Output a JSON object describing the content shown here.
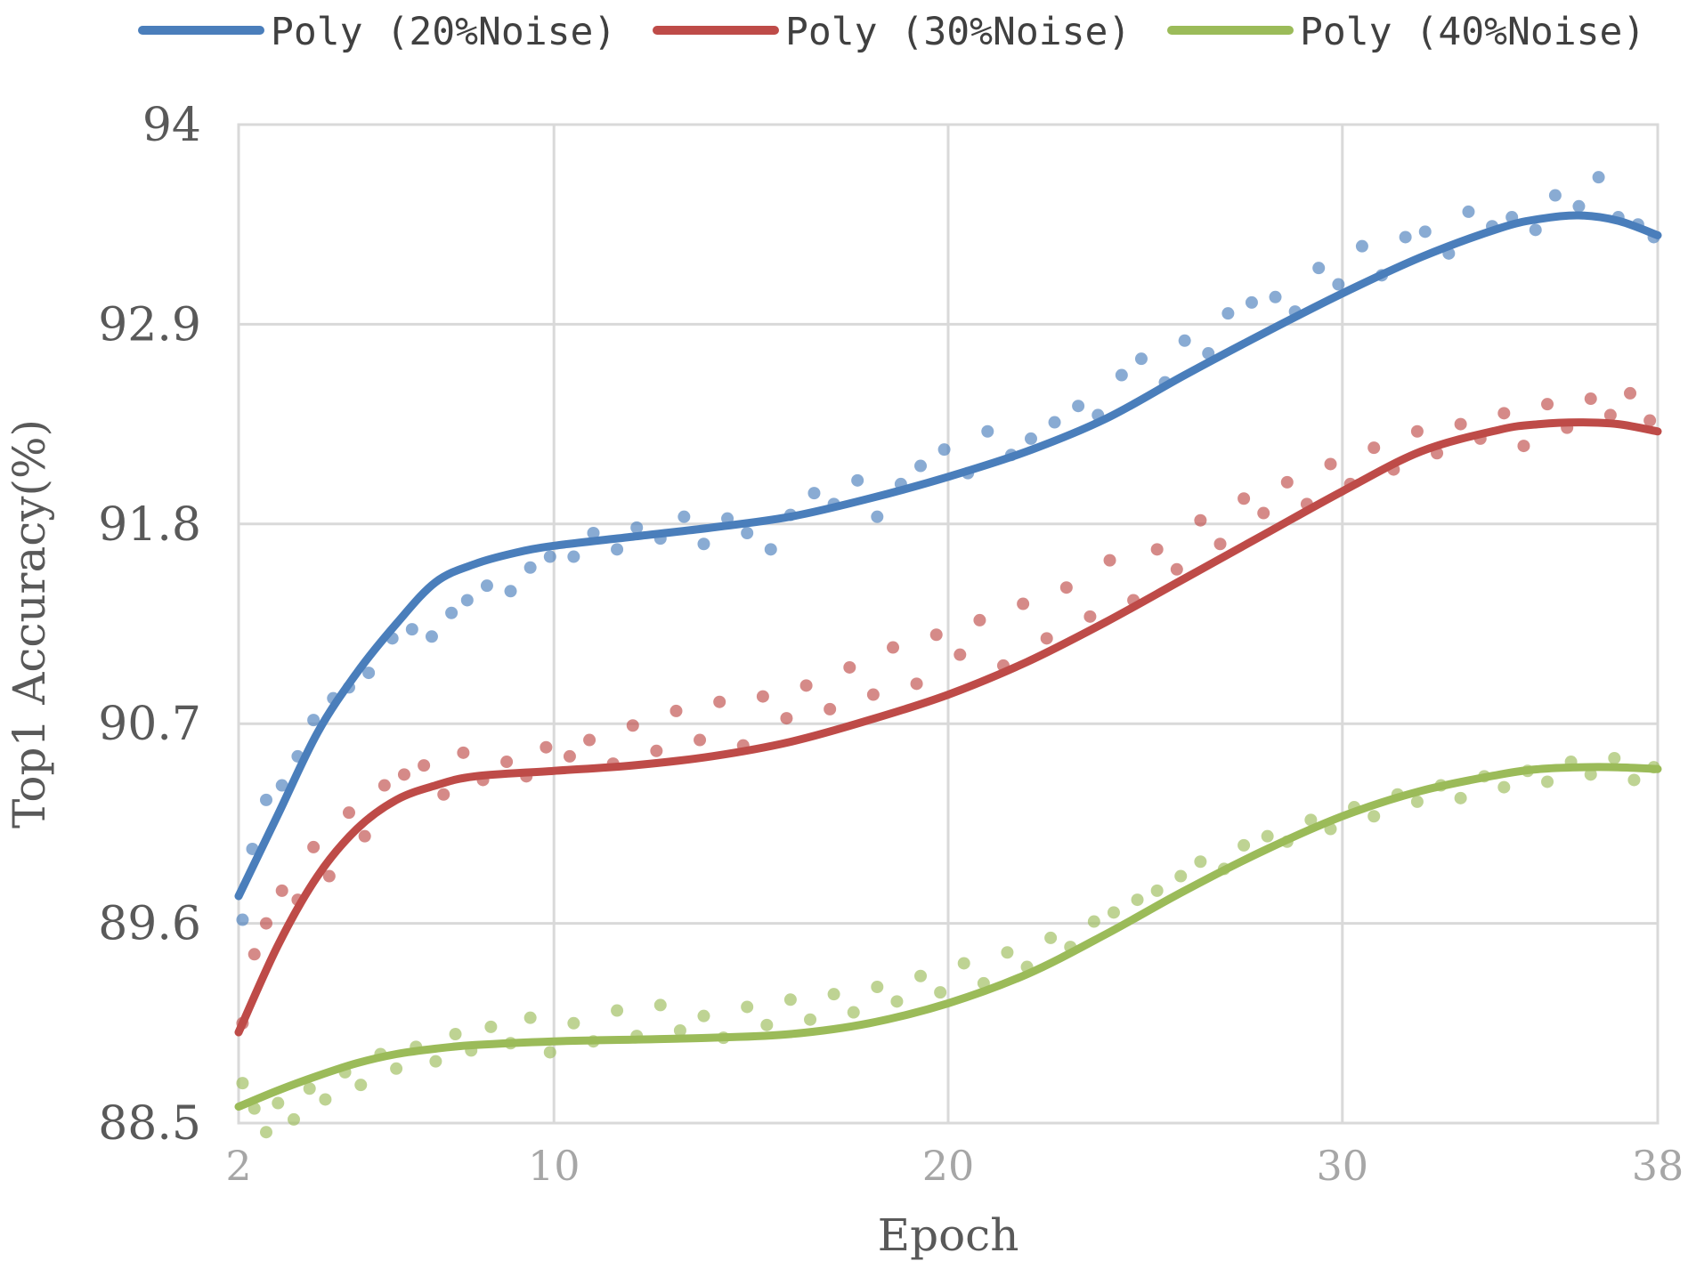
{
  "chart_data": {
    "type": "scatter",
    "title": "",
    "xlabel": "Epoch",
    "ylabel": "Top1 Accuracy(%)",
    "xlim": [
      2,
      38
    ],
    "ylim": [
      88.5,
      94
    ],
    "x_ticks": [
      2,
      10,
      20,
      30,
      38
    ],
    "y_ticks": [
      88.5,
      89.6,
      90.7,
      91.8,
      92.9,
      94
    ],
    "x_tick_labels": [
      "2",
      "10",
      "20",
      "30",
      "38"
    ],
    "y_tick_labels": [
      "88.5",
      "89.6",
      "90.7",
      "91.8",
      "92.9",
      "94"
    ],
    "grid": true,
    "legend_position": "top",
    "series": [
      {
        "name": "Poly (20%Noise)",
        "color": "#4a7ebb",
        "trend": [
          [
            2,
            89.75
          ],
          [
            3,
            90.2
          ],
          [
            4,
            90.65
          ],
          [
            5,
            90.98
          ],
          [
            6,
            91.25
          ],
          [
            7,
            91.48
          ],
          [
            8,
            91.58
          ],
          [
            9,
            91.64
          ],
          [
            10,
            91.68
          ],
          [
            12,
            91.73
          ],
          [
            14,
            91.78
          ],
          [
            16,
            91.84
          ],
          [
            18,
            91.94
          ],
          [
            20,
            92.06
          ],
          [
            22,
            92.2
          ],
          [
            24,
            92.38
          ],
          [
            26,
            92.62
          ],
          [
            28,
            92.85
          ],
          [
            30,
            93.07
          ],
          [
            32,
            93.27
          ],
          [
            34,
            93.43
          ],
          [
            35,
            93.48
          ],
          [
            36,
            93.5
          ],
          [
            37,
            93.47
          ],
          [
            38,
            93.39
          ]
        ],
        "points": [
          [
            2.1,
            89.62
          ],
          [
            2.35,
            90.01
          ],
          [
            2.7,
            90.28
          ],
          [
            3.1,
            90.36
          ],
          [
            3.5,
            90.52
          ],
          [
            3.9,
            90.72
          ],
          [
            4.4,
            90.84
          ],
          [
            4.8,
            90.9
          ],
          [
            5.3,
            90.98
          ],
          [
            5.9,
            91.17
          ],
          [
            6.4,
            91.22
          ],
          [
            6.9,
            91.18
          ],
          [
            7.4,
            91.31
          ],
          [
            7.8,
            91.38
          ],
          [
            8.3,
            91.46
          ],
          [
            8.9,
            91.43
          ],
          [
            9.4,
            91.56
          ],
          [
            9.9,
            91.62
          ],
          [
            10.5,
            91.62
          ],
          [
            11.0,
            91.75
          ],
          [
            11.6,
            91.66
          ],
          [
            12.1,
            91.78
          ],
          [
            12.7,
            91.72
          ],
          [
            13.3,
            91.84
          ],
          [
            13.8,
            91.69
          ],
          [
            14.4,
            91.83
          ],
          [
            14.9,
            91.75
          ],
          [
            15.5,
            91.66
          ],
          [
            16.0,
            91.85
          ],
          [
            16.6,
            91.97
          ],
          [
            17.1,
            91.91
          ],
          [
            17.7,
            92.04
          ],
          [
            18.2,
            91.84
          ],
          [
            18.8,
            92.02
          ],
          [
            19.3,
            92.12
          ],
          [
            19.9,
            92.21
          ],
          [
            20.5,
            92.08
          ],
          [
            21.0,
            92.31
          ],
          [
            21.6,
            92.18
          ],
          [
            22.1,
            92.27
          ],
          [
            22.7,
            92.36
          ],
          [
            23.3,
            92.45
          ],
          [
            23.8,
            92.4
          ],
          [
            24.4,
            92.62
          ],
          [
            24.9,
            92.71
          ],
          [
            25.5,
            92.58
          ],
          [
            26.0,
            92.81
          ],
          [
            26.6,
            92.74
          ],
          [
            27.1,
            92.96
          ],
          [
            27.7,
            93.02
          ],
          [
            28.3,
            93.05
          ],
          [
            28.8,
            92.97
          ],
          [
            29.4,
            93.21
          ],
          [
            29.9,
            93.12
          ],
          [
            30.5,
            93.33
          ],
          [
            31.0,
            93.17
          ],
          [
            31.6,
            93.38
          ],
          [
            32.1,
            93.41
          ],
          [
            32.7,
            93.29
          ],
          [
            33.2,
            93.52
          ],
          [
            33.8,
            93.44
          ],
          [
            34.3,
            93.49
          ],
          [
            34.9,
            93.42
          ],
          [
            35.4,
            93.61
          ],
          [
            36.0,
            93.55
          ],
          [
            36.5,
            93.71
          ],
          [
            37.0,
            93.49
          ],
          [
            37.5,
            93.45
          ],
          [
            37.9,
            93.38
          ]
        ]
      },
      {
        "name": "Poly (30%Noise)",
        "color": "#be4b48",
        "trend": [
          [
            2,
            89.0
          ],
          [
            3,
            89.48
          ],
          [
            4,
            89.86
          ],
          [
            5,
            90.12
          ],
          [
            6,
            90.28
          ],
          [
            7,
            90.36
          ],
          [
            8,
            90.41
          ],
          [
            10,
            90.44
          ],
          [
            12,
            90.47
          ],
          [
            14,
            90.52
          ],
          [
            16,
            90.6
          ],
          [
            18,
            90.72
          ],
          [
            20,
            90.86
          ],
          [
            22,
            91.04
          ],
          [
            24,
            91.26
          ],
          [
            26,
            91.5
          ],
          [
            28,
            91.74
          ],
          [
            30,
            91.98
          ],
          [
            32,
            92.2
          ],
          [
            34,
            92.32
          ],
          [
            35,
            92.35
          ],
          [
            36,
            92.36
          ],
          [
            37,
            92.35
          ],
          [
            38,
            92.31
          ]
        ],
        "points": [
          [
            2.1,
            89.05
          ],
          [
            2.4,
            89.43
          ],
          [
            2.7,
            89.6
          ],
          [
            3.1,
            89.78
          ],
          [
            3.5,
            89.73
          ],
          [
            3.9,
            90.02
          ],
          [
            4.3,
            89.86
          ],
          [
            4.8,
            90.21
          ],
          [
            5.2,
            90.08
          ],
          [
            5.7,
            90.36
          ],
          [
            6.2,
            90.42
          ],
          [
            6.7,
            90.47
          ],
          [
            7.2,
            90.31
          ],
          [
            7.7,
            90.54
          ],
          [
            8.2,
            90.39
          ],
          [
            8.8,
            90.49
          ],
          [
            9.3,
            90.41
          ],
          [
            9.8,
            90.57
          ],
          [
            10.4,
            90.52
          ],
          [
            10.9,
            90.61
          ],
          [
            11.5,
            90.48
          ],
          [
            12.0,
            90.69
          ],
          [
            12.6,
            90.55
          ],
          [
            13.1,
            90.77
          ],
          [
            13.7,
            90.61
          ],
          [
            14.2,
            90.82
          ],
          [
            14.8,
            90.58
          ],
          [
            15.3,
            90.85
          ],
          [
            15.9,
            90.73
          ],
          [
            16.4,
            90.91
          ],
          [
            17.0,
            90.78
          ],
          [
            17.5,
            91.01
          ],
          [
            18.1,
            90.86
          ],
          [
            18.6,
            91.12
          ],
          [
            19.2,
            90.92
          ],
          [
            19.7,
            91.19
          ],
          [
            20.3,
            91.08
          ],
          [
            20.8,
            91.27
          ],
          [
            21.4,
            91.02
          ],
          [
            21.9,
            91.36
          ],
          [
            22.5,
            91.17
          ],
          [
            23.0,
            91.45
          ],
          [
            23.6,
            91.29
          ],
          [
            24.1,
            91.6
          ],
          [
            24.7,
            91.38
          ],
          [
            25.3,
            91.66
          ],
          [
            25.8,
            91.55
          ],
          [
            26.4,
            91.82
          ],
          [
            26.9,
            91.69
          ],
          [
            27.5,
            91.94
          ],
          [
            28.0,
            91.86
          ],
          [
            28.6,
            92.03
          ],
          [
            29.1,
            91.91
          ],
          [
            29.7,
            92.13
          ],
          [
            30.2,
            92.02
          ],
          [
            30.8,
            92.22
          ],
          [
            31.3,
            92.1
          ],
          [
            31.9,
            92.31
          ],
          [
            32.4,
            92.19
          ],
          [
            33.0,
            92.35
          ],
          [
            33.5,
            92.27
          ],
          [
            34.1,
            92.41
          ],
          [
            34.6,
            92.23
          ],
          [
            35.2,
            92.46
          ],
          [
            35.7,
            92.33
          ],
          [
            36.3,
            92.49
          ],
          [
            36.8,
            92.4
          ],
          [
            37.3,
            92.52
          ],
          [
            37.8,
            92.37
          ]
        ]
      },
      {
        "name": "Poly (40%Noise)",
        "color": "#9bbb59",
        "trend": [
          [
            2,
            88.59
          ],
          [
            3,
            88.68
          ],
          [
            4,
            88.76
          ],
          [
            5,
            88.83
          ],
          [
            6,
            88.88
          ],
          [
            7,
            88.91
          ],
          [
            8,
            88.93
          ],
          [
            10,
            88.95
          ],
          [
            12,
            88.96
          ],
          [
            14,
            88.97
          ],
          [
            16,
            88.99
          ],
          [
            18,
            89.05
          ],
          [
            20,
            89.16
          ],
          [
            22,
            89.32
          ],
          [
            24,
            89.54
          ],
          [
            26,
            89.78
          ],
          [
            28,
            90.0
          ],
          [
            30,
            90.19
          ],
          [
            32,
            90.33
          ],
          [
            34,
            90.42
          ],
          [
            35,
            90.45
          ],
          [
            36,
            90.46
          ],
          [
            37,
            90.46
          ],
          [
            38,
            90.45
          ]
        ],
        "points": [
          [
            2.1,
            88.72
          ],
          [
            2.4,
            88.58
          ],
          [
            2.7,
            88.45
          ],
          [
            3.0,
            88.61
          ],
          [
            3.4,
            88.52
          ],
          [
            3.8,
            88.69
          ],
          [
            4.2,
            88.63
          ],
          [
            4.7,
            88.78
          ],
          [
            5.1,
            88.71
          ],
          [
            5.6,
            88.88
          ],
          [
            6.0,
            88.8
          ],
          [
            6.5,
            88.92
          ],
          [
            7.0,
            88.84
          ],
          [
            7.5,
            88.99
          ],
          [
            7.9,
            88.9
          ],
          [
            8.4,
            89.03
          ],
          [
            8.9,
            88.94
          ],
          [
            9.4,
            89.08
          ],
          [
            9.9,
            88.89
          ],
          [
            10.5,
            89.05
          ],
          [
            11.0,
            88.95
          ],
          [
            11.6,
            89.12
          ],
          [
            12.1,
            88.98
          ],
          [
            12.7,
            89.15
          ],
          [
            13.2,
            89.01
          ],
          [
            13.8,
            89.09
          ],
          [
            14.3,
            88.97
          ],
          [
            14.9,
            89.14
          ],
          [
            15.4,
            89.04
          ],
          [
            16.0,
            89.18
          ],
          [
            16.5,
            89.07
          ],
          [
            17.1,
            89.21
          ],
          [
            17.6,
            89.11
          ],
          [
            18.2,
            89.25
          ],
          [
            18.7,
            89.17
          ],
          [
            19.3,
            89.31
          ],
          [
            19.8,
            89.22
          ],
          [
            20.4,
            89.38
          ],
          [
            20.9,
            89.27
          ],
          [
            21.5,
            89.44
          ],
          [
            22.0,
            89.36
          ],
          [
            22.6,
            89.52
          ],
          [
            23.1,
            89.47
          ],
          [
            23.7,
            89.61
          ],
          [
            24.2,
            89.66
          ],
          [
            24.8,
            89.73
          ],
          [
            25.3,
            89.78
          ],
          [
            25.9,
            89.86
          ],
          [
            26.4,
            89.94
          ],
          [
            27.0,
            89.9
          ],
          [
            27.5,
            90.03
          ],
          [
            28.1,
            90.08
          ],
          [
            28.6,
            90.05
          ],
          [
            29.2,
            90.17
          ],
          [
            29.7,
            90.12
          ],
          [
            30.3,
            90.24
          ],
          [
            30.8,
            90.19
          ],
          [
            31.4,
            90.31
          ],
          [
            31.9,
            90.27
          ],
          [
            32.5,
            90.36
          ],
          [
            33.0,
            90.29
          ],
          [
            33.6,
            90.41
          ],
          [
            34.1,
            90.35
          ],
          [
            34.7,
            90.44
          ],
          [
            35.2,
            90.38
          ],
          [
            35.8,
            90.49
          ],
          [
            36.3,
            90.42
          ],
          [
            36.9,
            90.51
          ],
          [
            37.4,
            90.39
          ],
          [
            37.9,
            90.46
          ]
        ]
      }
    ]
  }
}
